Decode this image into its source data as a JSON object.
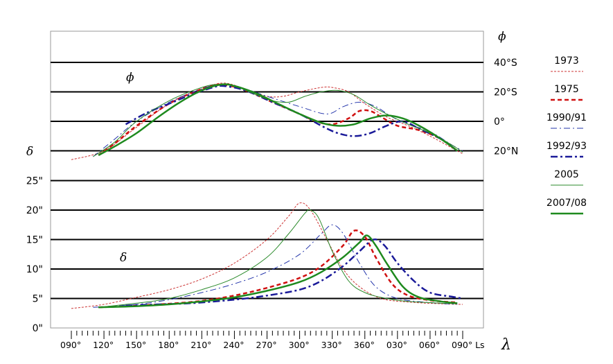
{
  "chart_data": {
    "type": "line",
    "symbols": {
      "phi": "ϕ",
      "delta": "δ",
      "lambda": "λ"
    },
    "x_tick_labels": [
      "090°",
      "120°",
      "150°",
      "180°",
      "210°",
      "240°",
      "270°",
      "300°",
      "330°",
      "360°",
      "030°",
      "060°",
      "090° Ls"
    ],
    "x_range": [
      90,
      450
    ],
    "phi_axis": {
      "tick_labels": [
        "40°S",
        "20°S",
        "0°",
        "20°N"
      ],
      "values": [
        40,
        20,
        0,
        -20
      ]
    },
    "delta_axis": {
      "tick_labels": [
        "0\"",
        "5\"",
        "10\"",
        "15\"",
        "20\"",
        "25\""
      ],
      "values": [
        0,
        5,
        10,
        15,
        20,
        25
      ]
    },
    "legend": [
      "1973",
      "1975",
      "1990/91",
      "1992/93",
      "2005",
      "2007/08"
    ],
    "series": [
      {
        "name": "1973",
        "color": "#cc3333",
        "style": "dotted-thin",
        "phi": [
          [
            90,
            -26
          ],
          [
            120,
            -20
          ],
          [
            150,
            -4
          ],
          [
            180,
            12
          ],
          [
            210,
            22
          ],
          [
            230,
            26
          ],
          [
            250,
            22
          ],
          [
            270,
            17
          ],
          [
            285,
            17
          ],
          [
            300,
            20
          ],
          [
            320,
            23
          ],
          [
            330,
            23
          ],
          [
            345,
            20
          ],
          [
            360,
            12
          ],
          [
            380,
            3
          ],
          [
            400,
            -3
          ],
          [
            420,
            -10
          ],
          [
            440,
            -18
          ],
          [
            450,
            -22
          ]
        ],
        "delta": [
          [
            90,
            3.3
          ],
          [
            120,
            4.0
          ],
          [
            150,
            5.2
          ],
          [
            180,
            6.5
          ],
          [
            210,
            8.3
          ],
          [
            240,
            11
          ],
          [
            270,
            15
          ],
          [
            290,
            19
          ],
          [
            300,
            21.2
          ],
          [
            310,
            20
          ],
          [
            325,
            15
          ],
          [
            340,
            10
          ],
          [
            355,
            7
          ],
          [
            375,
            5
          ],
          [
            400,
            4.4
          ],
          [
            430,
            4.1
          ],
          [
            450,
            4.0
          ]
        ]
      },
      {
        "name": "1975",
        "color": "#d01010",
        "style": "dashed-thick",
        "phi": [
          [
            115,
            -23
          ],
          [
            130,
            -15
          ],
          [
            150,
            -3
          ],
          [
            180,
            12
          ],
          [
            210,
            22
          ],
          [
            228,
            25
          ],
          [
            250,
            21
          ],
          [
            275,
            13
          ],
          [
            300,
            5
          ],
          [
            315,
            0
          ],
          [
            330,
            -2
          ],
          [
            345,
            2
          ],
          [
            355,
            7
          ],
          [
            365,
            7
          ],
          [
            375,
            3
          ],
          [
            390,
            -3
          ],
          [
            410,
            -6
          ],
          [
            430,
            -12
          ],
          [
            445,
            -20
          ]
        ],
        "delta": [
          [
            115,
            3.5
          ],
          [
            150,
            3.8
          ],
          [
            180,
            4.1
          ],
          [
            210,
            4.6
          ],
          [
            240,
            5.5
          ],
          [
            270,
            6.8
          ],
          [
            300,
            8.5
          ],
          [
            320,
            10.5
          ],
          [
            340,
            14
          ],
          [
            350,
            16.5
          ],
          [
            360,
            15.5
          ],
          [
            370,
            12
          ],
          [
            385,
            7.5
          ],
          [
            400,
            5.5
          ],
          [
            420,
            4.7
          ],
          [
            445,
            4.3
          ]
        ]
      },
      {
        "name": "1990/91",
        "color": "#2233aa",
        "style": "dashdot-thin",
        "phi": [
          [
            110,
            -24
          ],
          [
            130,
            -12
          ],
          [
            150,
            0
          ],
          [
            180,
            13
          ],
          [
            210,
            22
          ],
          [
            228,
            25
          ],
          [
            250,
            22
          ],
          [
            270,
            17
          ],
          [
            300,
            10
          ],
          [
            325,
            5
          ],
          [
            340,
            10
          ],
          [
            355,
            13
          ],
          [
            370,
            10
          ],
          [
            385,
            3
          ],
          [
            400,
            -2
          ],
          [
            420,
            -7
          ],
          [
            440,
            -16
          ],
          [
            450,
            -20
          ]
        ],
        "delta": [
          [
            110,
            3.5
          ],
          [
            150,
            4
          ],
          [
            180,
            4.8
          ],
          [
            210,
            6
          ],
          [
            240,
            7.5
          ],
          [
            270,
            9.5
          ],
          [
            300,
            12.5
          ],
          [
            320,
            16
          ],
          [
            330,
            17.5
          ],
          [
            340,
            16
          ],
          [
            355,
            11
          ],
          [
            370,
            7
          ],
          [
            390,
            5
          ],
          [
            420,
            4.3
          ],
          [
            445,
            4.0
          ]
        ]
      },
      {
        "name": "1992/93",
        "color": "#1a1a99",
        "style": "dashdot-thick",
        "phi": [
          [
            140,
            -2
          ],
          [
            160,
            6
          ],
          [
            180,
            12
          ],
          [
            200,
            18
          ],
          [
            220,
            23
          ],
          [
            230,
            24
          ],
          [
            250,
            21
          ],
          [
            275,
            13
          ],
          [
            300,
            5
          ],
          [
            320,
            -3
          ],
          [
            335,
            -8
          ],
          [
            350,
            -10
          ],
          [
            365,
            -8
          ],
          [
            380,
            -3
          ],
          [
            395,
            0
          ],
          [
            410,
            -5
          ],
          [
            430,
            -12
          ],
          [
            445,
            -20
          ]
        ],
        "delta": [
          [
            140,
            3.8
          ],
          [
            170,
            4.0
          ],
          [
            200,
            4.2
          ],
          [
            240,
            4.8
          ],
          [
            270,
            5.5
          ],
          [
            300,
            6.5
          ],
          [
            320,
            8
          ],
          [
            340,
            10.5
          ],
          [
            355,
            13
          ],
          [
            368,
            15
          ],
          [
            378,
            14
          ],
          [
            390,
            11
          ],
          [
            405,
            8
          ],
          [
            420,
            6
          ],
          [
            440,
            5.3
          ],
          [
            450,
            5
          ]
        ]
      },
      {
        "name": "2005",
        "color": "#2a8a2a",
        "style": "solid-thin",
        "phi": [
          [
            110,
            -24
          ],
          [
            130,
            -14
          ],
          [
            150,
            0
          ],
          [
            180,
            14
          ],
          [
            210,
            23
          ],
          [
            225,
            25
          ],
          [
            240,
            24
          ],
          [
            260,
            18
          ],
          [
            275,
            14
          ],
          [
            290,
            13
          ],
          [
            305,
            17
          ],
          [
            320,
            20
          ],
          [
            335,
            21
          ],
          [
            350,
            18
          ],
          [
            365,
            11
          ],
          [
            380,
            5
          ],
          [
            400,
            -2
          ],
          [
            420,
            -8
          ],
          [
            440,
            -16
          ],
          [
            450,
            -21
          ]
        ],
        "delta": [
          [
            115,
            3.5
          ],
          [
            150,
            4.2
          ],
          [
            180,
            5
          ],
          [
            210,
            6.5
          ],
          [
            240,
            8.5
          ],
          [
            270,
            12
          ],
          [
            290,
            16
          ],
          [
            305,
            19.5
          ],
          [
            310,
            20
          ],
          [
            318,
            18.5
          ],
          [
            330,
            13
          ],
          [
            345,
            8
          ],
          [
            360,
            6
          ],
          [
            380,
            5
          ],
          [
            400,
            4.5
          ],
          [
            430,
            4.2
          ],
          [
            445,
            4.1
          ]
        ]
      },
      {
        "name": "2007/08",
        "color": "#1e8a1e",
        "style": "solid-thick",
        "phi": [
          [
            115,
            -23
          ],
          [
            130,
            -17
          ],
          [
            150,
            -8
          ],
          [
            170,
            3
          ],
          [
            190,
            13
          ],
          [
            210,
            21
          ],
          [
            228,
            25
          ],
          [
            240,
            24
          ],
          [
            260,
            19
          ],
          [
            280,
            12
          ],
          [
            300,
            5
          ],
          [
            320,
            -1
          ],
          [
            335,
            -3
          ],
          [
            350,
            -2
          ],
          [
            365,
            2
          ],
          [
            380,
            4
          ],
          [
            395,
            2
          ],
          [
            410,
            -3
          ],
          [
            430,
            -12
          ],
          [
            445,
            -20
          ]
        ],
        "delta": [
          [
            115,
            3.5
          ],
          [
            150,
            3.7
          ],
          [
            180,
            4.0
          ],
          [
            210,
            4.5
          ],
          [
            240,
            5.2
          ],
          [
            270,
            6.3
          ],
          [
            300,
            7.8
          ],
          [
            320,
            9.5
          ],
          [
            340,
            12
          ],
          [
            355,
            14.5
          ],
          [
            362,
            15.7
          ],
          [
            370,
            14
          ],
          [
            380,
            11
          ],
          [
            395,
            7
          ],
          [
            410,
            5.2
          ],
          [
            430,
            4.5
          ],
          [
            445,
            4.2
          ]
        ]
      }
    ]
  }
}
